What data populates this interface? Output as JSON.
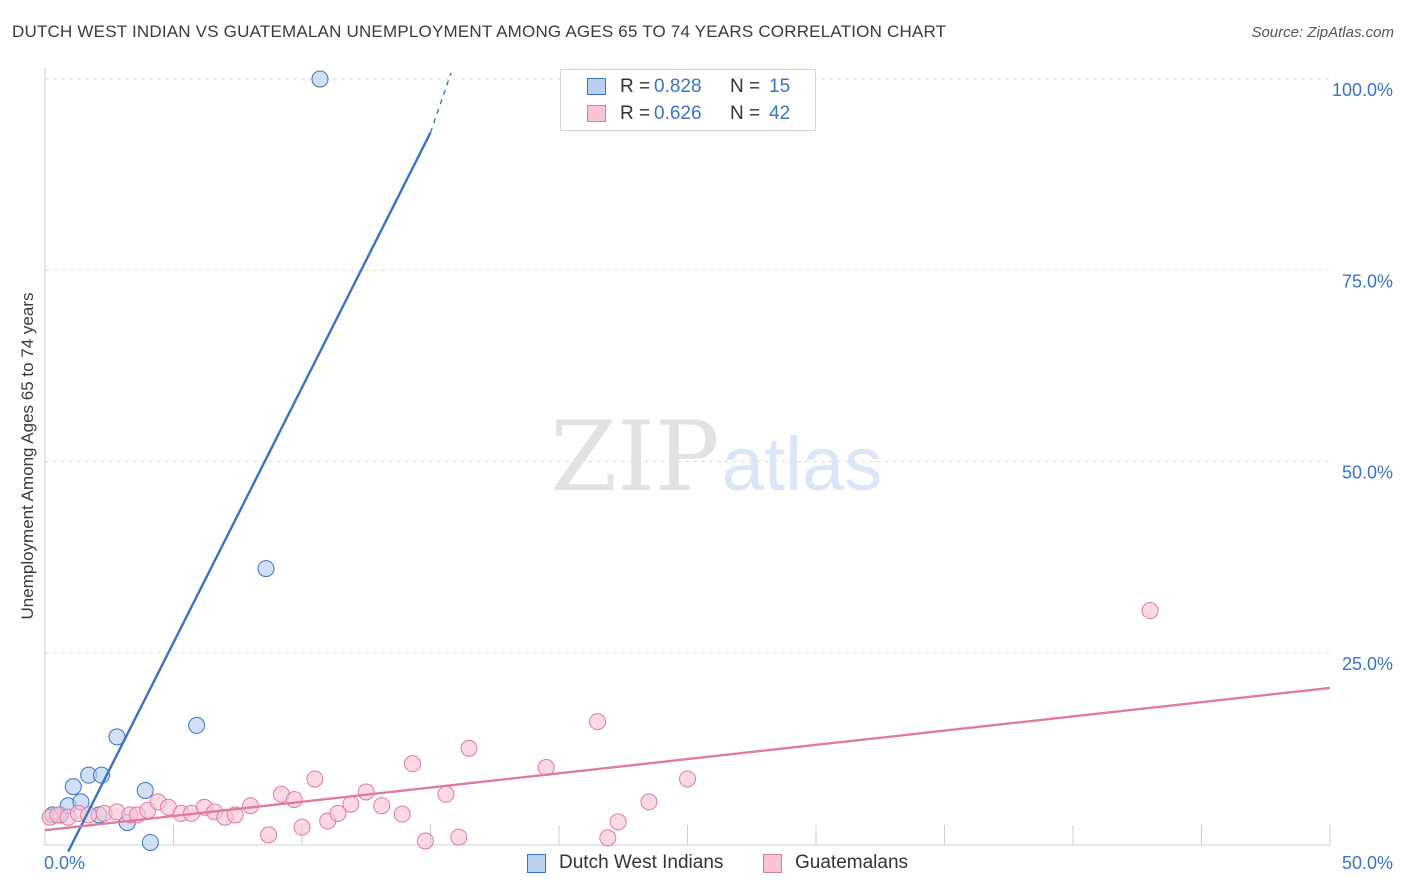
{
  "chart_data": {
    "type": "scatter",
    "title": "DUTCH WEST INDIAN VS GUATEMALAN UNEMPLOYMENT AMONG AGES 65 TO 74 YEARS CORRELATION CHART",
    "source": "Source: ZipAtlas.com",
    "xlabel": "",
    "ylabel": "Unemployment Among Ages 65 to 74 years",
    "xlim": [
      0,
      50
    ],
    "ylim": [
      0,
      100
    ],
    "x_ticks": [
      "0.0%",
      "50.0%"
    ],
    "y_ticks": [
      "25.0%",
      "50.0%",
      "75.0%",
      "100.0%"
    ],
    "watermark": {
      "zip": "ZIP",
      "atlas": "atlas"
    },
    "series": [
      {
        "name": "Dutch West Indians",
        "color": "#3a73c4",
        "fill": "#b9d0f2",
        "R": "0.828",
        "N": "15",
        "trend": {
          "x0": 0.9,
          "y0": -1.0,
          "x1": 15.0,
          "y1": 93.0
        },
        "points": [
          {
            "x": 0.3,
            "y": 3.8
          },
          {
            "x": 0.6,
            "y": 3.8
          },
          {
            "x": 0.9,
            "y": 5.0
          },
          {
            "x": 1.1,
            "y": 7.5
          },
          {
            "x": 1.4,
            "y": 5.5
          },
          {
            "x": 1.7,
            "y": 9.0
          },
          {
            "x": 2.1,
            "y": 3.8
          },
          {
            "x": 2.2,
            "y": 9.0
          },
          {
            "x": 2.8,
            "y": 14.0
          },
          {
            "x": 3.2,
            "y": 2.8
          },
          {
            "x": 3.9,
            "y": 7.0
          },
          {
            "x": 4.1,
            "y": 0.2
          },
          {
            "x": 5.9,
            "y": 15.5
          },
          {
            "x": 8.6,
            "y": 36.0
          },
          {
            "x": 10.7,
            "y": 100.0
          }
        ]
      },
      {
        "name": "Guatemalans",
        "color": "#e07aa2",
        "fill": "#f8c4d6",
        "R": "0.626",
        "N": "42",
        "trend": {
          "x0": 0.0,
          "y0": 1.8,
          "x1": 50.0,
          "y1": 20.4
        },
        "points": [
          {
            "x": 0.2,
            "y": 3.5
          },
          {
            "x": 0.5,
            "y": 3.8
          },
          {
            "x": 0.9,
            "y": 3.5
          },
          {
            "x": 1.3,
            "y": 4.0
          },
          {
            "x": 1.7,
            "y": 3.8
          },
          {
            "x": 2.3,
            "y": 4.0
          },
          {
            "x": 2.8,
            "y": 4.2
          },
          {
            "x": 3.3,
            "y": 3.8
          },
          {
            "x": 3.6,
            "y": 3.8
          },
          {
            "x": 4.0,
            "y": 4.4
          },
          {
            "x": 4.4,
            "y": 5.5
          },
          {
            "x": 4.8,
            "y": 4.8
          },
          {
            "x": 5.3,
            "y": 4.0
          },
          {
            "x": 5.7,
            "y": 4.0
          },
          {
            "x": 6.2,
            "y": 4.8
          },
          {
            "x": 6.6,
            "y": 4.2
          },
          {
            "x": 7.0,
            "y": 3.5
          },
          {
            "x": 7.4,
            "y": 3.8
          },
          {
            "x": 8.0,
            "y": 5.0
          },
          {
            "x": 8.7,
            "y": 1.2
          },
          {
            "x": 9.2,
            "y": 6.5
          },
          {
            "x": 9.7,
            "y": 5.8
          },
          {
            "x": 10.0,
            "y": 2.2
          },
          {
            "x": 10.5,
            "y": 8.5
          },
          {
            "x": 11.0,
            "y": 3.0
          },
          {
            "x": 11.4,
            "y": 4.0
          },
          {
            "x": 11.9,
            "y": 5.2
          },
          {
            "x": 12.5,
            "y": 6.8
          },
          {
            "x": 13.1,
            "y": 5.0
          },
          {
            "x": 13.9,
            "y": 3.9
          },
          {
            "x": 14.3,
            "y": 10.5
          },
          {
            "x": 14.8,
            "y": 0.4
          },
          {
            "x": 15.6,
            "y": 6.5
          },
          {
            "x": 16.1,
            "y": 0.9
          },
          {
            "x": 16.5,
            "y": 12.5
          },
          {
            "x": 19.5,
            "y": 10.0
          },
          {
            "x": 21.5,
            "y": 16.0
          },
          {
            "x": 21.9,
            "y": 0.8
          },
          {
            "x": 22.3,
            "y": 2.9
          },
          {
            "x": 23.5,
            "y": 5.5
          },
          {
            "x": 25.0,
            "y": 8.5
          },
          {
            "x": 43.0,
            "y": 30.5
          }
        ]
      }
    ]
  }
}
